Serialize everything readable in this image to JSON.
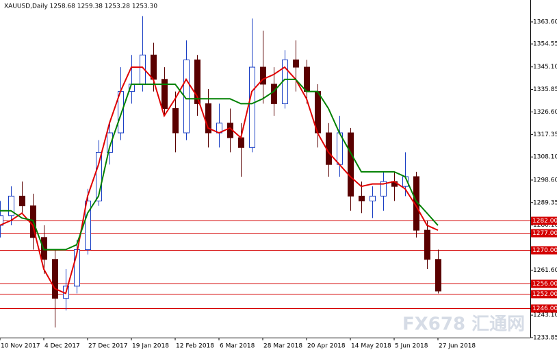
{
  "chart_data": {
    "type": "candlestick",
    "title": "XAUUSD,Daily  1258.68 1259.38 1253.28 1253.30",
    "watermark": "FX678 汇通网",
    "categories": [
      "10 Nov 2017",
      null,
      null,
      null,
      "4 Dec 2017",
      null,
      null,
      null,
      "27 Dec 2017",
      null,
      null,
      null,
      "19 Jan 2018",
      null,
      null,
      null,
      "12 Feb 2018",
      null,
      null,
      null,
      "6 Mar 2018",
      null,
      null,
      null,
      "28 Mar 2018",
      null,
      null,
      null,
      "20 Apr 2018",
      null,
      null,
      null,
      "14 May 2018",
      null,
      null,
      null,
      "5 Jun 2018",
      null,
      null,
      null,
      "27 Jun 2018"
    ],
    "open": [
      1280,
      1284,
      1292,
      1288,
      1275,
      1266,
      1250,
      1255,
      1270,
      1290,
      1310,
      1318,
      1335,
      1338,
      1350,
      1340,
      1328,
      1318,
      1348,
      1330,
      1318,
      1322,
      1316,
      1312,
      1345,
      1338,
      1330,
      1348,
      1345,
      1335,
      1318,
      1305,
      1318,
      1292,
      1290,
      1292,
      1298,
      1296,
      1300,
      1278,
      1266
    ],
    "high": [
      1290,
      1296,
      1298,
      1293,
      1280,
      1270,
      1262,
      1274,
      1295,
      1315,
      1322,
      1345,
      1350,
      1366,
      1355,
      1345,
      1335,
      1356,
      1350,
      1336,
      1330,
      1328,
      1322,
      1365,
      1360,
      1345,
      1352,
      1356,
      1348,
      1338,
      1322,
      1325,
      1320,
      1298,
      1296,
      1302,
      1302,
      1310,
      1302,
      1282,
      1270
    ],
    "low": [
      1275,
      1280,
      1285,
      1270,
      1260,
      1238,
      1245,
      1252,
      1268,
      1288,
      1305,
      1315,
      1330,
      1335,
      1335,
      1325,
      1310,
      1315,
      1325,
      1312,
      1312,
      1310,
      1300,
      1310,
      1330,
      1325,
      1328,
      1335,
      1330,
      1312,
      1300,
      1300,
      1286,
      1285,
      1283,
      1286,
      1290,
      1292,
      1275,
      1262,
      1252
    ],
    "close": [
      1284,
      1292,
      1288,
      1275,
      1266,
      1250,
      1255,
      1270,
      1290,
      1310,
      1318,
      1335,
      1338,
      1350,
      1340,
      1328,
      1318,
      1348,
      1330,
      1318,
      1322,
      1316,
      1312,
      1345,
      1338,
      1330,
      1348,
      1345,
      1335,
      1318,
      1305,
      1318,
      1292,
      1290,
      1292,
      1298,
      1296,
      1300,
      1278,
      1266,
      1253
    ],
    "up_color": "#1a3fc4",
    "down_color": "#5a0000",
    "series": [
      {
        "color": "#e00000",
        "values": [
          1280,
          1282,
          1285,
          1280,
          1262,
          1254,
          1252,
          1268,
          1292,
          1305,
          1322,
          1335,
          1345,
          1345,
          1340,
          1325,
          1332,
          1340,
          1333,
          1320,
          1318,
          1320,
          1316,
          1335,
          1340,
          1342,
          1345,
          1340,
          1332,
          1318,
          1310,
          1305,
          1300,
          1296,
          1297,
          1297,
          1298,
          1295,
          1288,
          1280,
          1278
        ]
      },
      {
        "color": "#008000",
        "values": [
          1286,
          1286,
          1283,
          1282,
          1270,
          1270,
          1270,
          1272,
          1285,
          1292,
          1312,
          1325,
          1338,
          1338,
          1338,
          1338,
          1338,
          1332,
          1332,
          1332,
          1332,
          1332,
          1330,
          1330,
          1332,
          1335,
          1340,
          1340,
          1335,
          1335,
          1328,
          1318,
          1310,
          1302,
          1302,
          1302,
          1302,
          1300,
          1290,
          1285,
          1280
        ]
      }
    ],
    "levels": [
      {
        "value": 1282,
        "label": "1282.00"
      },
      {
        "value": 1277,
        "label": "1277.00"
      },
      {
        "value": 1270,
        "label": "1270.00"
      },
      {
        "value": 1256,
        "label": "1256.00"
      },
      {
        "value": 1252,
        "label": "1252.00"
      },
      {
        "value": 1246,
        "label": "1246.00"
      }
    ],
    "level_color": "#d40000",
    "ylim": [
      1233.85,
      1372.6
    ],
    "yticks": [
      {
        "value": 1363.6,
        "label": "1363.60"
      },
      {
        "value": 1354.55,
        "label": "1354.55"
      },
      {
        "value": 1345.1,
        "label": "1345.10"
      },
      {
        "value": 1335.85,
        "label": "1335.85"
      },
      {
        "value": 1326.6,
        "label": "1326.60"
      },
      {
        "value": 1317.35,
        "label": "1317.35"
      },
      {
        "value": 1308.1,
        "label": "1308.10"
      },
      {
        "value": 1298.6,
        "label": "1298.60"
      },
      {
        "value": 1289.35,
        "label": "1289.35"
      },
      {
        "value": 1280.1,
        "label": "1280.10"
      },
      {
        "value": 1261.6,
        "label": "1261.60"
      },
      {
        "value": 1243.1,
        "label": "1243.10"
      },
      {
        "value": 1233.85,
        "label": "1233.85"
      }
    ]
  }
}
